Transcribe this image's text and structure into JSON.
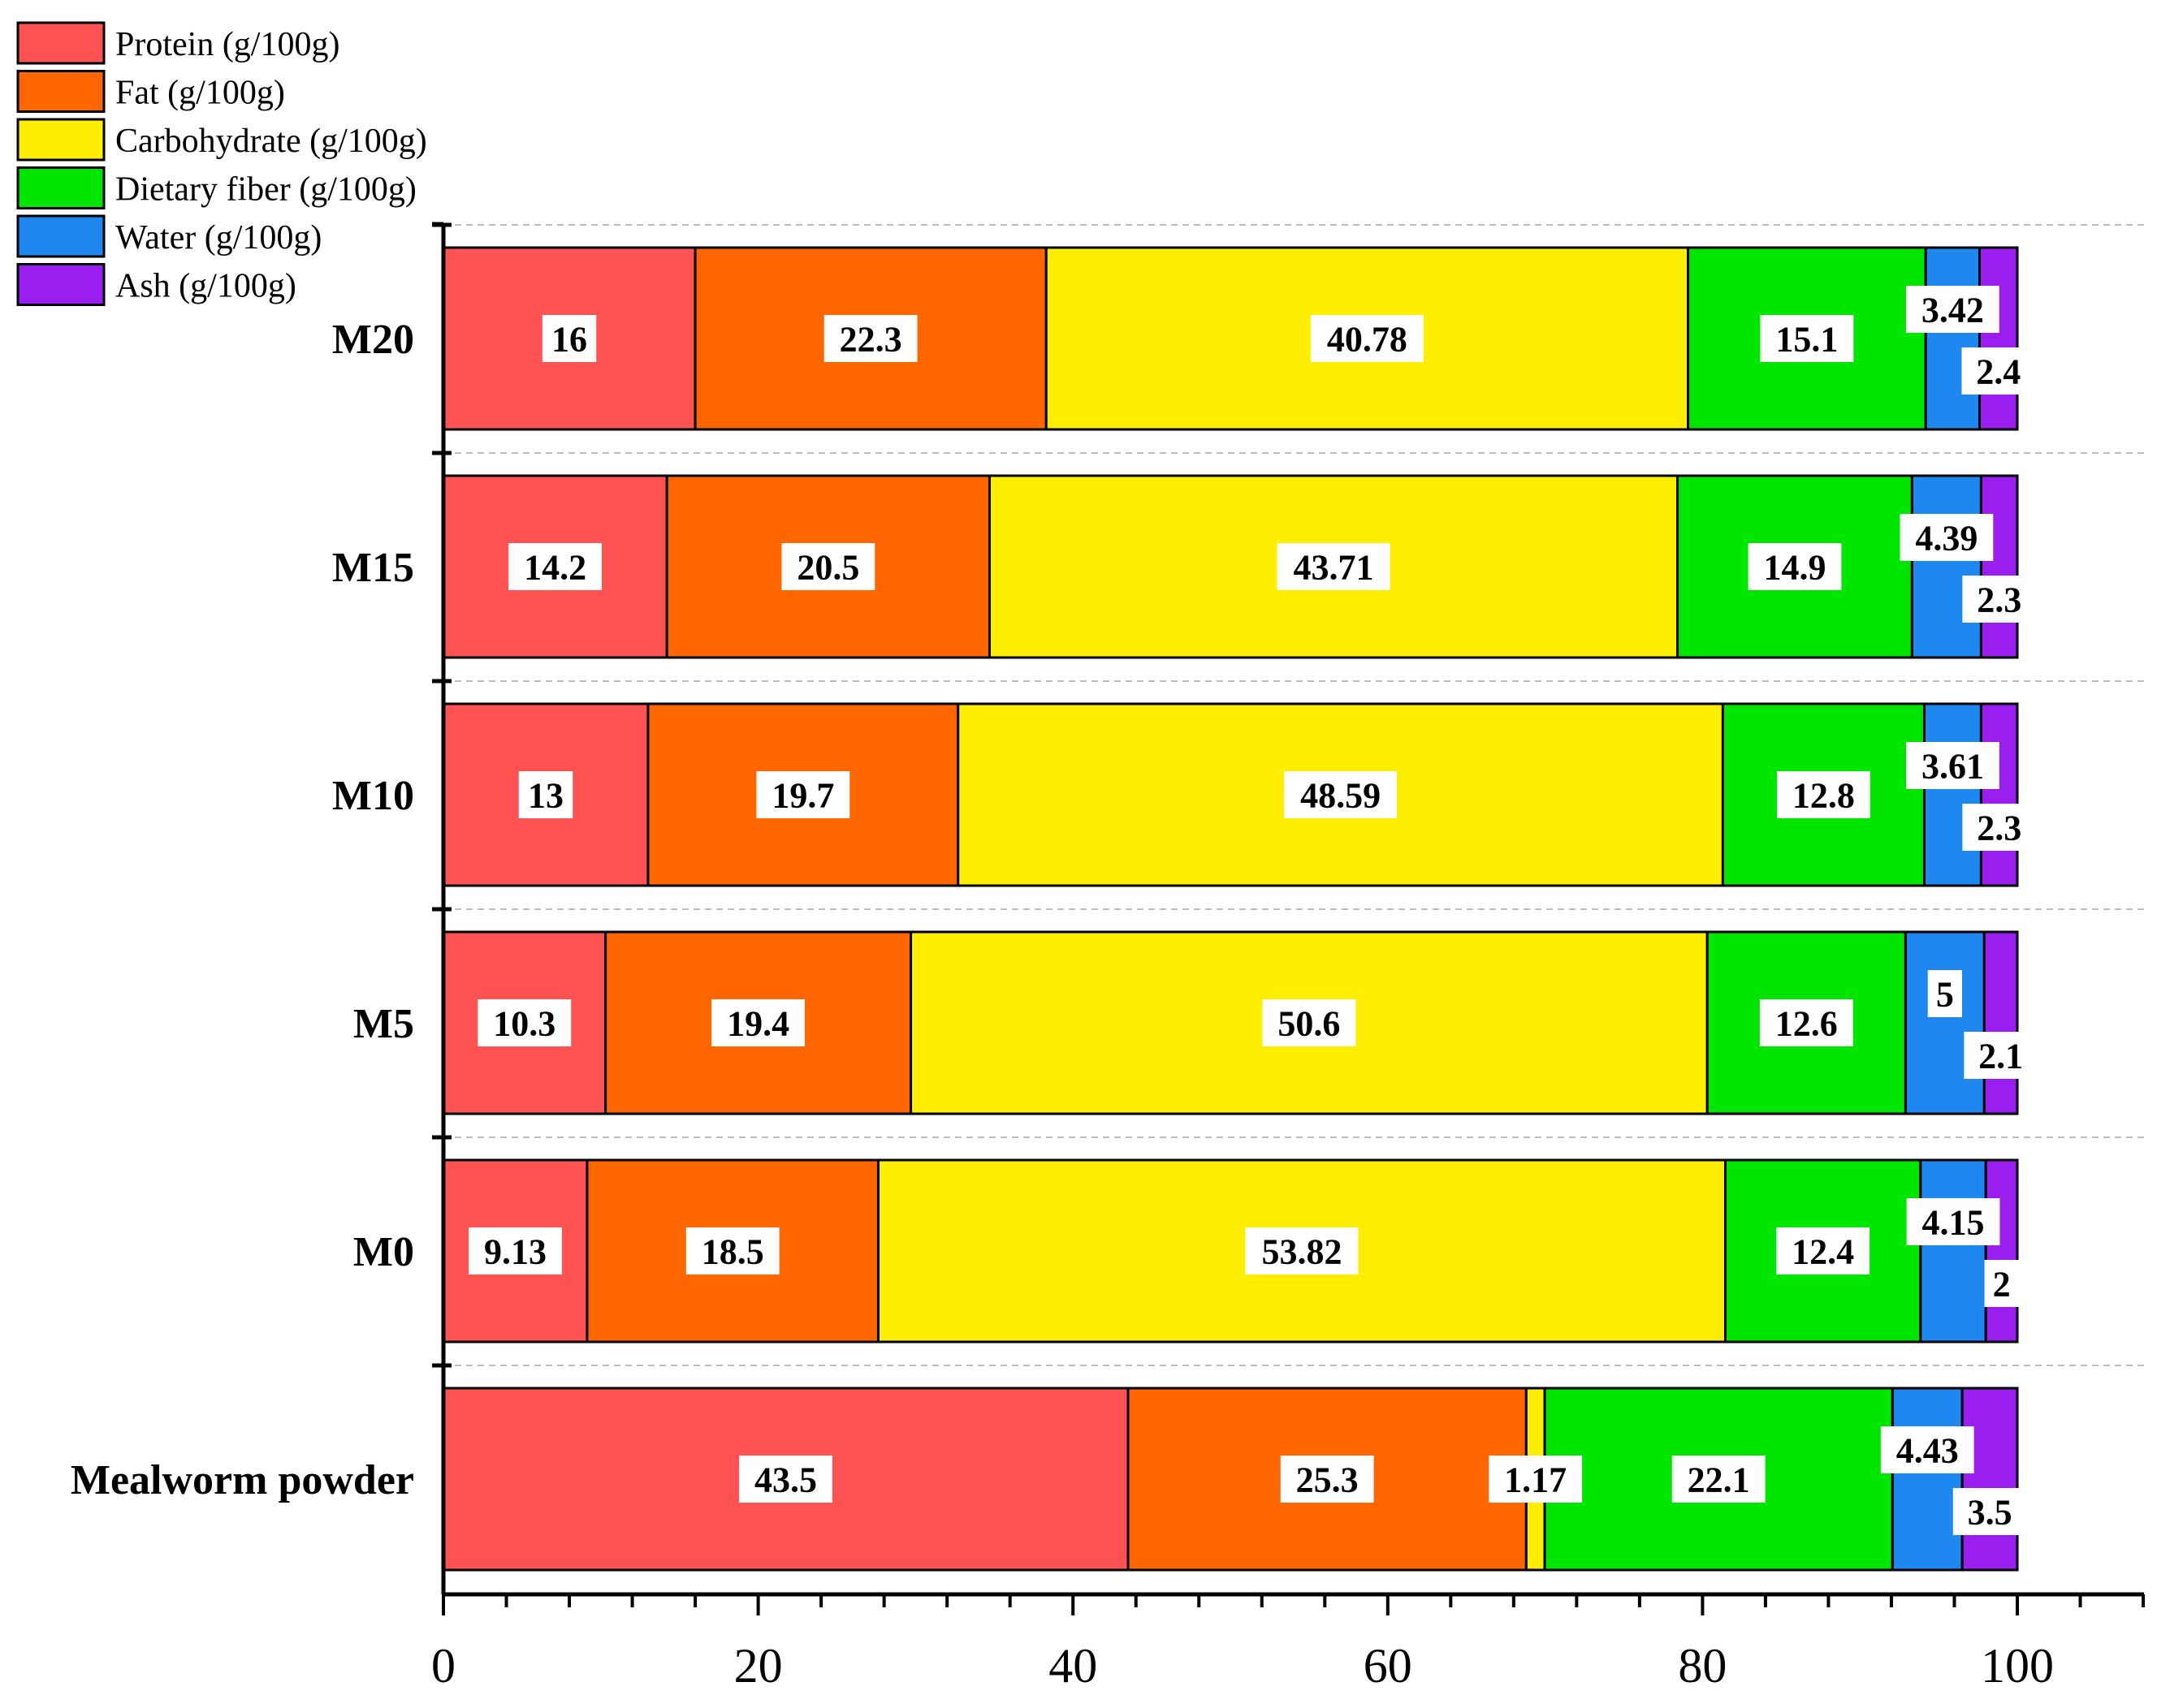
{
  "chart_data": {
    "type": "bar",
    "orientation": "horizontal",
    "stacked": true,
    "categories": [
      "Mealworm powder",
      "M0",
      "M5",
      "M10",
      "M15",
      "M20"
    ],
    "series": [
      {
        "name": "Protein (g/100g)",
        "color": "#FF5252",
        "values": [
          43.5,
          9.13,
          10.3,
          13,
          14.2,
          16
        ],
        "labels": [
          "43.5",
          "9.13",
          "10.3",
          "13",
          "14.2",
          "16"
        ]
      },
      {
        "name": "Fat (g/100g)",
        "color": "#FF6600",
        "values": [
          25.3,
          18.5,
          19.4,
          19.7,
          20.5,
          22.3
        ],
        "labels": [
          "25.3",
          "18.5",
          "19.4",
          "19.7",
          "20.5",
          "22.3"
        ]
      },
      {
        "name": "Carbohydrate  (g/100g)",
        "color": "#FFEE00",
        "values": [
          1.17,
          53.82,
          50.6,
          48.59,
          43.71,
          40.78
        ],
        "labels": [
          "1.17",
          "53.82",
          "50.6",
          "48.59",
          "43.71",
          "40.78"
        ]
      },
      {
        "name": "Dietary fiber (g/100g)",
        "color": "#00E600",
        "values": [
          22.1,
          12.4,
          12.6,
          12.8,
          14.9,
          15.1
        ],
        "labels": [
          "22.1",
          "12.4",
          "12.6",
          "12.8",
          "14.9",
          "15.1"
        ]
      },
      {
        "name": "Water (g/100g)",
        "color": "#1E88F0",
        "values": [
          4.43,
          4.15,
          5,
          3.61,
          4.39,
          3.42
        ],
        "labels": [
          "4.43",
          "4.15",
          "5",
          "3.61",
          "4.39",
          "3.42"
        ]
      },
      {
        "name": "Ash (g/100g)",
        "color": "#9A1EF0",
        "values": [
          3.5,
          2,
          2.1,
          2.3,
          2.3,
          2.4
        ],
        "labels": [
          "3.5",
          "2",
          "2.1",
          "2.3",
          "2.3",
          "2.4"
        ]
      }
    ],
    "xlim": [
      0,
      108
    ],
    "xticks": [
      0,
      20,
      40,
      60,
      80,
      100
    ],
    "xtick_labels": [
      "0",
      "20",
      "40",
      "60",
      "80",
      "100"
    ],
    "title": "",
    "xlabel": "",
    "ylabel": "",
    "legend_position": "top-left",
    "grid": false,
    "category_separators": "dashed"
  }
}
